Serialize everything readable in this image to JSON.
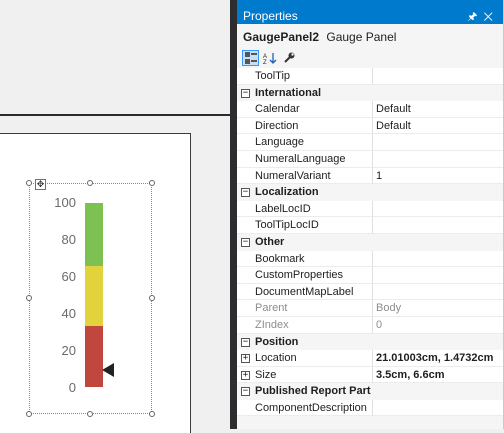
{
  "properties_panel": {
    "title": "Properties",
    "object_name": "GaugePanel2",
    "object_type": "Gauge Panel",
    "toolbar": [
      "categorized-view-icon",
      "alphabetical-sort-icon",
      "property-pages-icon"
    ],
    "rows": [
      {
        "type": "prop",
        "name": "ToolTip",
        "value": ""
      },
      {
        "type": "category",
        "name": "International",
        "state": "collapse"
      },
      {
        "type": "prop",
        "name": "Calendar",
        "value": "Default"
      },
      {
        "type": "prop",
        "name": "Direction",
        "value": "Default"
      },
      {
        "type": "prop",
        "name": "Language",
        "value": ""
      },
      {
        "type": "prop",
        "name": "NumeralLanguage",
        "value": ""
      },
      {
        "type": "prop",
        "name": "NumeralVariant",
        "value": "1"
      },
      {
        "type": "category",
        "name": "Localization",
        "state": "collapse"
      },
      {
        "type": "prop",
        "name": "LabelLocID",
        "value": ""
      },
      {
        "type": "prop",
        "name": "ToolTipLocID",
        "value": ""
      },
      {
        "type": "category",
        "name": "Other",
        "state": "collapse"
      },
      {
        "type": "prop",
        "name": "Bookmark",
        "value": ""
      },
      {
        "type": "prop",
        "name": "CustomProperties",
        "value": ""
      },
      {
        "type": "prop",
        "name": "DocumentMapLabel",
        "value": ""
      },
      {
        "type": "prop",
        "name": "Parent",
        "value": "Body",
        "disabled": true
      },
      {
        "type": "prop",
        "name": "ZIndex",
        "value": "0",
        "disabled": true
      },
      {
        "type": "category",
        "name": "Position",
        "state": "collapse"
      },
      {
        "type": "prop",
        "name": "Location",
        "value": "21.01003cm, 1.4732cm",
        "expandable": true,
        "bold": true
      },
      {
        "type": "prop",
        "name": "Size",
        "value": "3.5cm, 6.6cm",
        "expandable": true,
        "bold": true
      },
      {
        "type": "category",
        "name": "Published Report Part",
        "state": "collapse"
      },
      {
        "type": "prop",
        "name": "ComponentDescription",
        "value": ""
      }
    ]
  },
  "gauge": {
    "scale_labels": [
      "100",
      "80",
      "60",
      "40",
      "20",
      "0"
    ],
    "scale_min": 0,
    "scale_max": 100,
    "pointer_value": 9,
    "ranges": [
      {
        "from": 0,
        "to": 33,
        "color": "#c0473d"
      },
      {
        "from": 33,
        "to": 66,
        "color": "#e2d33c"
      },
      {
        "from": 66,
        "to": 100,
        "color": "#7cc152"
      }
    ]
  }
}
